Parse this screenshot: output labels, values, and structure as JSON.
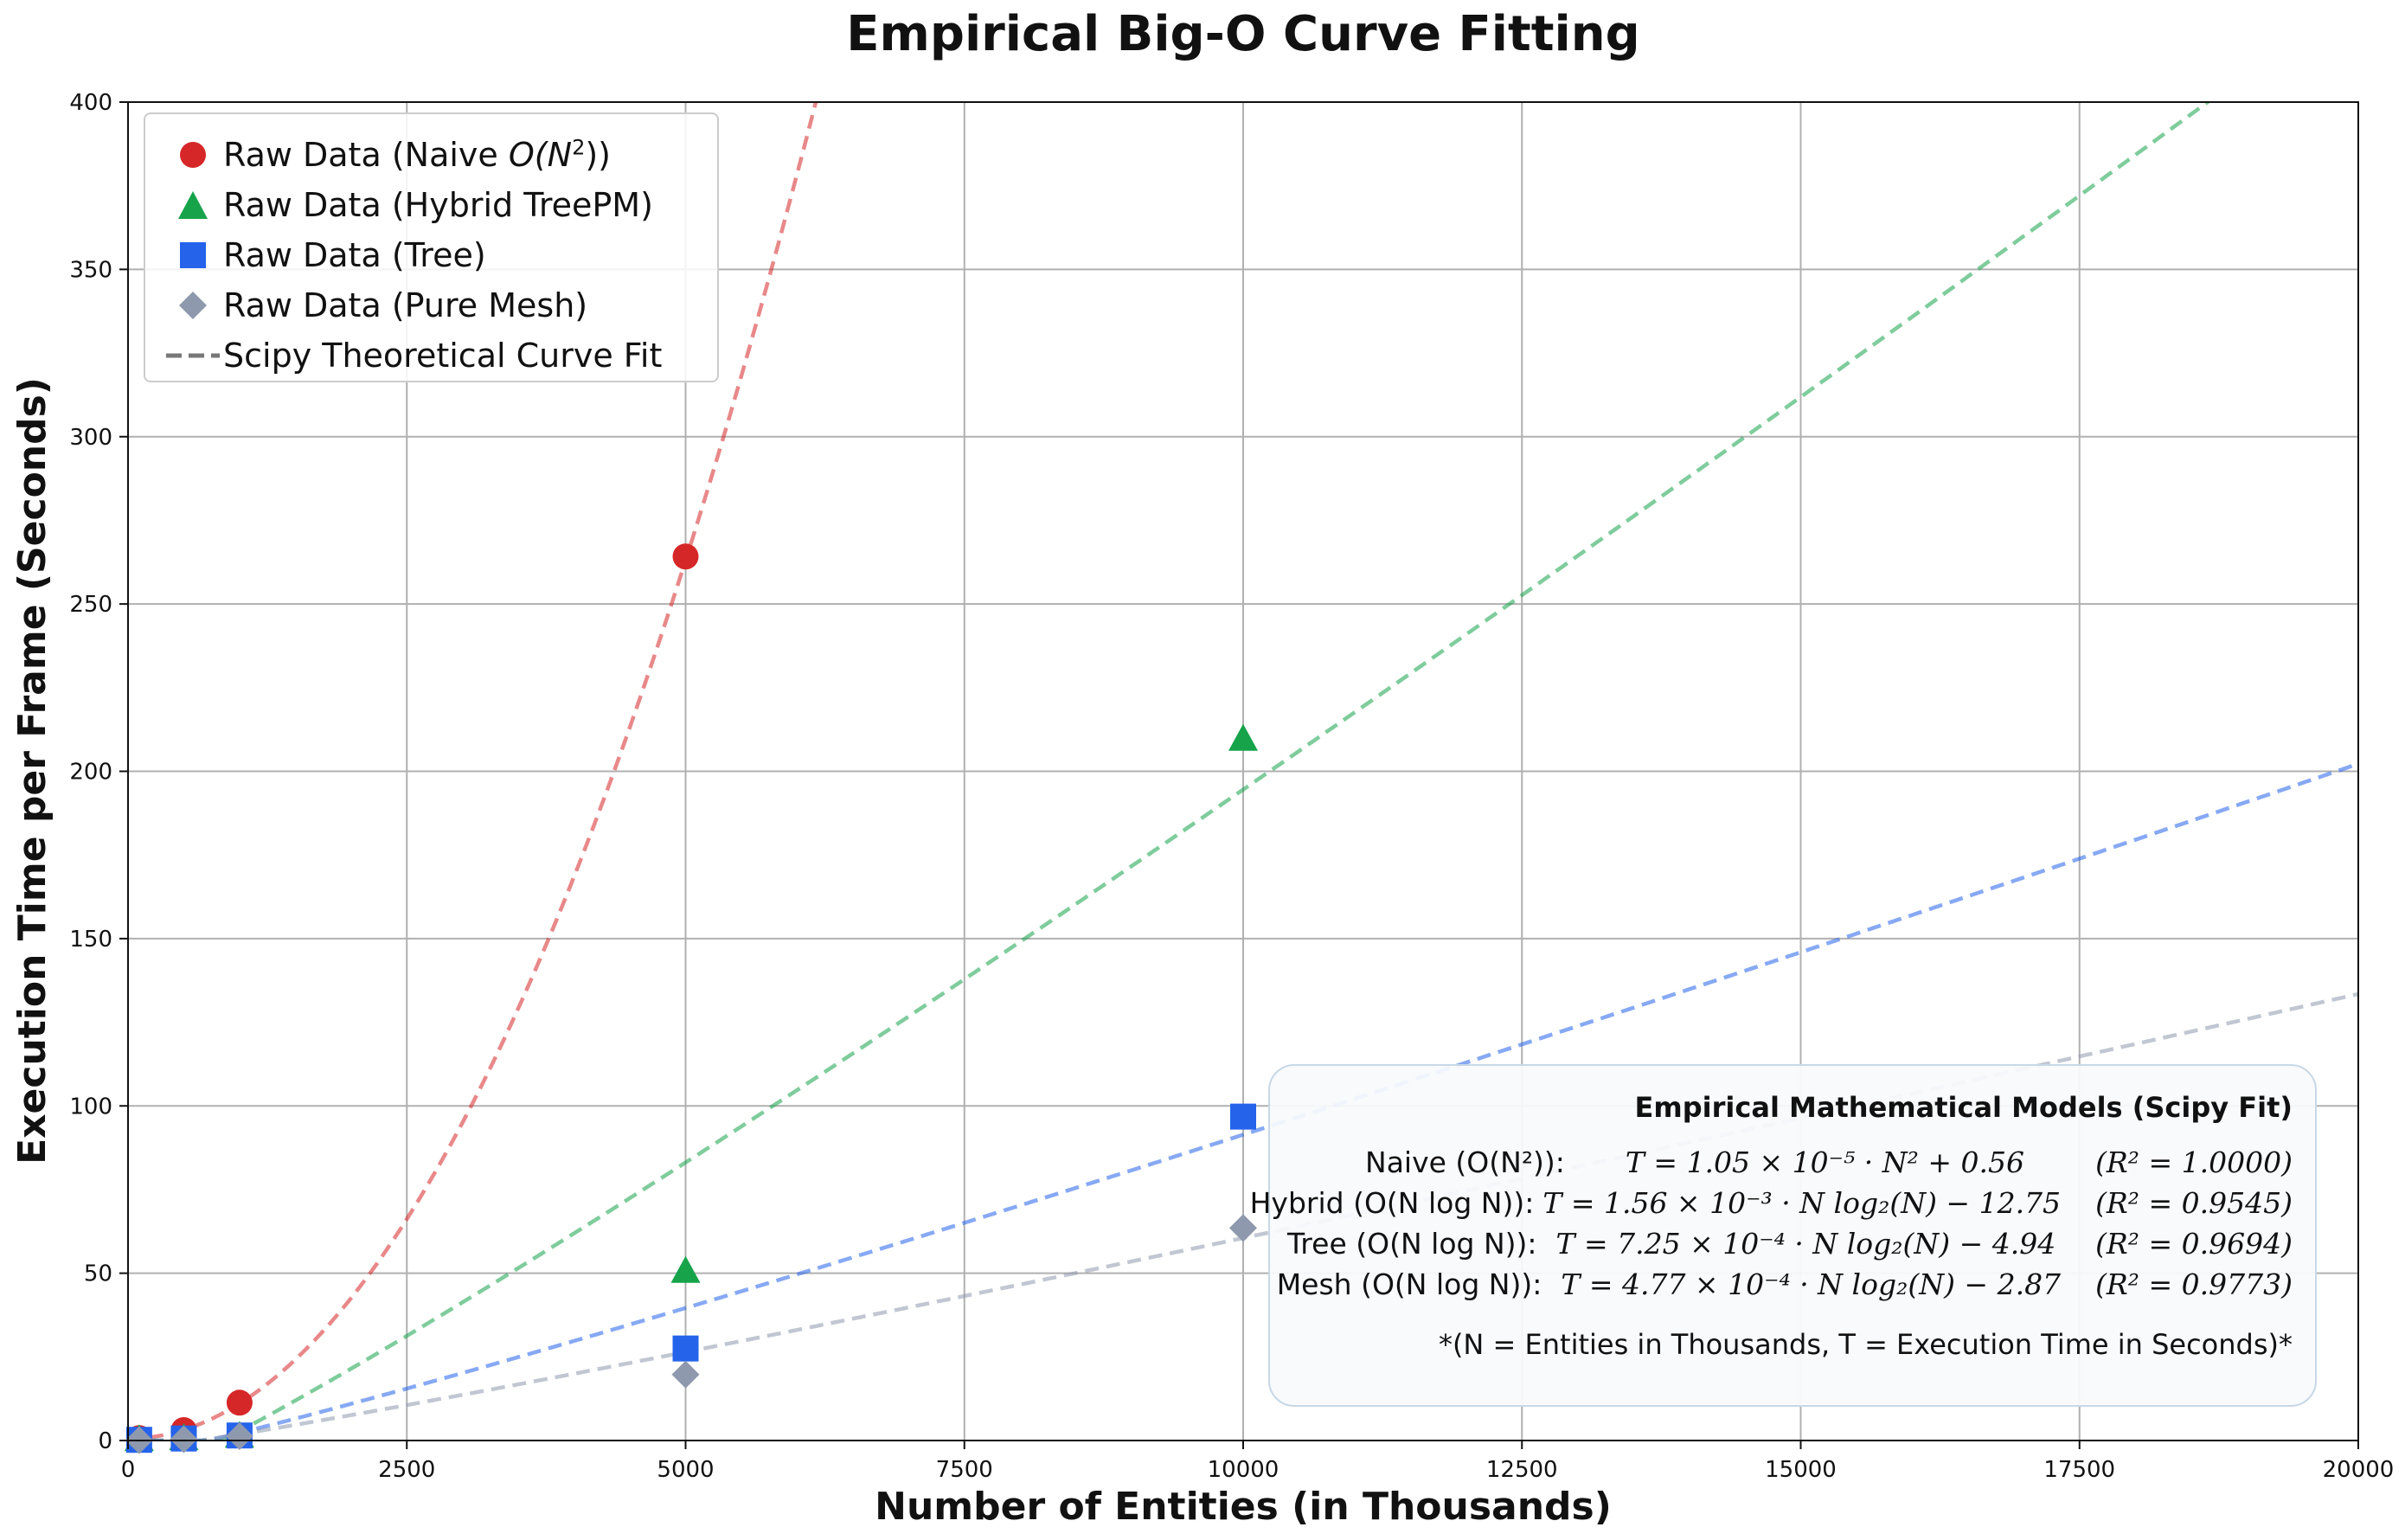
{
  "chart_data": {
    "type": "scatter",
    "title": "Empirical Big-O Curve Fitting",
    "xlabel": "Number of Entities (in Thousands)",
    "ylabel": "Execution Time per Frame (Seconds)",
    "xlim": [
      0,
      20000
    ],
    "ylim": [
      0,
      400
    ],
    "x_ticks": [
      "0",
      "2500",
      "5000",
      "7500",
      "10000",
      "12500",
      "15000",
      "17500",
      "20000"
    ],
    "y_ticks": [
      "0",
      "50",
      "100",
      "150",
      "200",
      "250",
      "300",
      "350",
      "400"
    ],
    "grid": true,
    "legend_position": "top-left",
    "series": [
      {
        "name": "Raw Data (Naive O(N²))",
        "marker": "circle",
        "color": "#d62728",
        "x": [
          100,
          500,
          1000,
          5000
        ],
        "y": [
          0.7,
          3.1,
          11.3,
          264.2
        ],
        "fit": {
          "model": "quadratic",
          "a": 1.05e-05,
          "b": 0.56
        }
      },
      {
        "name": "Raw Data (Hybrid TreePM)",
        "marker": "triangle",
        "color": "#16a34a",
        "x": [
          100,
          500,
          1000,
          5000,
          10000
        ],
        "y": [
          0.2,
          0.5,
          1.2,
          50.5,
          209.5
        ],
        "fit": {
          "model": "nlogn",
          "a": 0.00156,
          "b": -12.75
        }
      },
      {
        "name": "Raw Data (Tree)",
        "marker": "square",
        "color": "#2563eb",
        "x": [
          100,
          500,
          1000,
          5000,
          10000
        ],
        "y": [
          0.2,
          0.6,
          1.5,
          27.5,
          96.8
        ],
        "fit": {
          "model": "nlogn",
          "a": 0.000725,
          "b": -4.94
        }
      },
      {
        "name": "Raw Data (Pure Mesh)",
        "marker": "diamond",
        "color": "#8e99ad",
        "x": [
          100,
          500,
          1000,
          5000,
          10000
        ],
        "y": [
          0.1,
          0.4,
          1.3,
          19.7,
          63.5
        ],
        "fit": {
          "model": "nlogn",
          "a": 0.000477,
          "b": -2.87
        }
      }
    ],
    "fit_legend_label": "Scipy Theoretical Curve Fit"
  },
  "legend": {
    "naive_prefix": "Raw Data (Naive ",
    "naive_o": "O",
    "naive_n": "(N",
    "naive_sup": "2",
    "naive_suffix": "))",
    "hybrid": "Raw Data (Hybrid TreePM)",
    "tree": "Raw Data (Tree)",
    "mesh": "Raw Data (Pure Mesh)",
    "fit": "Scipy Theoretical Curve Fit"
  },
  "models": {
    "title": "Empirical Mathematical Models (Scipy Fit)",
    "naive_name": "Naive (O(N²)):",
    "naive_eq": "T = 1.05 × 10⁻⁵ · N² + 0.56",
    "naive_r2": "(R² = 1.0000)",
    "hybrid_name": "Hybrid (O(N log N)):",
    "hybrid_eq": "T = 1.56 × 10⁻³ · N log₂(N) − 12.75",
    "hybrid_r2": "(R² = 0.9545)",
    "tree_name": "Tree (O(N log N)):",
    "tree_eq": "T = 7.25 × 10⁻⁴ · N log₂(N) − 4.94",
    "tree_r2": "(R² = 0.9694)",
    "mesh_name": "Mesh (O(N log N)):",
    "mesh_eq": "T = 4.77 × 10⁻⁴ · N log₂(N) − 2.87",
    "mesh_r2": "(R² = 0.9773)",
    "note": "*(N = Entities in Thousands, T = Execution Time in Seconds)*"
  }
}
